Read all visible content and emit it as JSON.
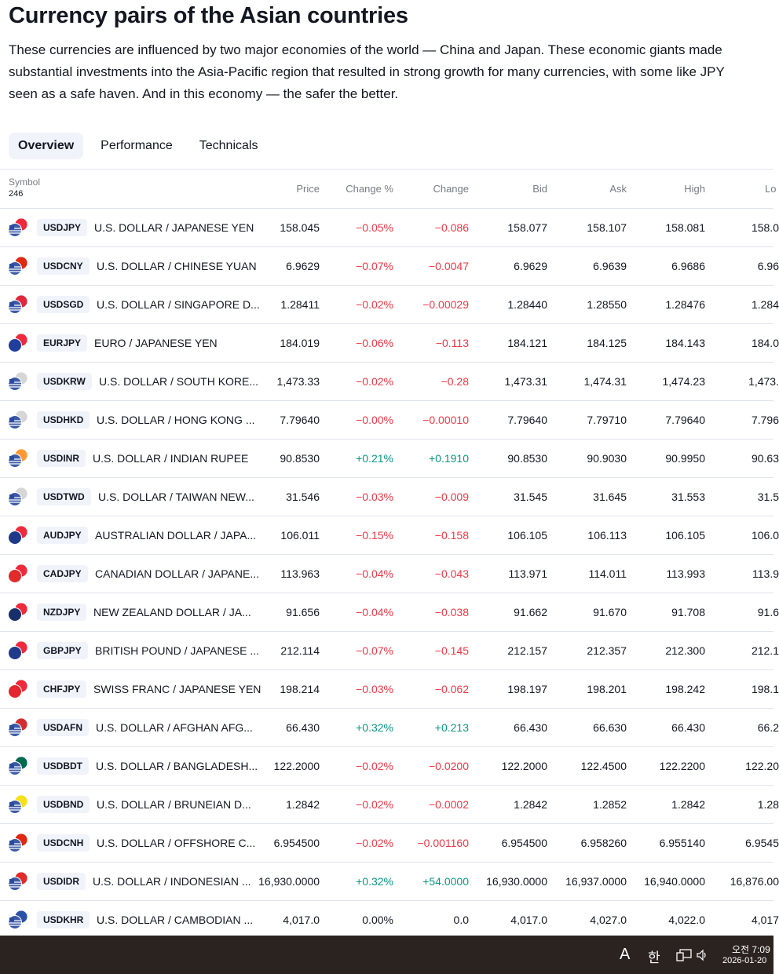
{
  "page": {
    "title": "Currency pairs of the Asian countries",
    "description": "These currencies are influenced by two major economies of the world — China and Japan. These economic giants made substantial investments into the Asia-Pacific region that resulted in strong growth for many currencies, with some like JPY seen as a safe haven. And in this economy — the safer the better."
  },
  "tabs": [
    {
      "label": "Overview",
      "active": true
    },
    {
      "label": "Performance",
      "active": false
    },
    {
      "label": "Technicals",
      "active": false
    }
  ],
  "table": {
    "columns": {
      "symbol": "Symbol",
      "count": "246",
      "price": "Price",
      "change_pct": "Change %",
      "change": "Change",
      "bid": "Bid",
      "ask": "Ask",
      "high": "High",
      "low": "Lo"
    },
    "colors": {
      "negative": "#f23645",
      "positive": "#089981",
      "neutral": "#131722"
    },
    "rows": [
      {
        "ticker": "USDJPY",
        "name": "U.S. DOLLAR / JAPANESE YEN",
        "flag": "us-jp-flag",
        "price": "158.045",
        "change_pct": "−0.05%",
        "change": "−0.086",
        "bid": "158.077",
        "ask": "158.107",
        "high": "158.081",
        "low": "158.0",
        "dir": "neg"
      },
      {
        "ticker": "USDCNY",
        "name": "U.S. DOLLAR / CHINESE YUAN",
        "flag": "us-cn-flag",
        "price": "6.9629",
        "change_pct": "−0.07%",
        "change": "−0.0047",
        "bid": "6.9629",
        "ask": "6.9639",
        "high": "6.9686",
        "low": "6.96",
        "dir": "neg"
      },
      {
        "ticker": "USDSGD",
        "name": "U.S. DOLLAR / SINGAPORE D...",
        "flag": "us-sg-flag",
        "price": "1.28411",
        "change_pct": "−0.02%",
        "change": "−0.00029",
        "bid": "1.28440",
        "ask": "1.28550",
        "high": "1.28476",
        "low": "1.284",
        "dir": "neg"
      },
      {
        "ticker": "EURJPY",
        "name": "EURO / JAPANESE YEN",
        "flag": "eu-jp-flag",
        "price": "184.019",
        "change_pct": "−0.06%",
        "change": "−0.113",
        "bid": "184.121",
        "ask": "184.125",
        "high": "184.143",
        "low": "184.0",
        "dir": "neg"
      },
      {
        "ticker": "USDKRW",
        "name": "U.S. DOLLAR / SOUTH KORE...",
        "flag": "us-kr-flag",
        "price": "1,473.33",
        "change_pct": "−0.02%",
        "change": "−0.28",
        "bid": "1,473.31",
        "ask": "1,474.31",
        "high": "1,474.23",
        "low": "1,473.",
        "dir": "neg"
      },
      {
        "ticker": "USDHKD",
        "name": "U.S. DOLLAR / HONG KONG ...",
        "flag": "us-hk-flag",
        "price": "7.79640",
        "change_pct": "−0.00%",
        "change": "−0.00010",
        "bid": "7.79640",
        "ask": "7.79710",
        "high": "7.79640",
        "low": "7.796",
        "dir": "neg"
      },
      {
        "ticker": "USDINR",
        "name": "U.S. DOLLAR / INDIAN RUPEE",
        "flag": "us-in-flag",
        "price": "90.8530",
        "change_pct": "+0.21%",
        "change": "+0.1910",
        "bid": "90.8530",
        "ask": "90.9030",
        "high": "90.9950",
        "low": "90.63",
        "dir": "pos"
      },
      {
        "ticker": "USDTWD",
        "name": "U.S. DOLLAR / TAIWAN NEW...",
        "flag": "us-tw-flag",
        "price": "31.546",
        "change_pct": "−0.03%",
        "change": "−0.009",
        "bid": "31.545",
        "ask": "31.645",
        "high": "31.553",
        "low": "31.5",
        "dir": "neg"
      },
      {
        "ticker": "AUDJPY",
        "name": "AUSTRALIAN DOLLAR / JAPA...",
        "flag": "au-jp-flag",
        "price": "106.011",
        "change_pct": "−0.15%",
        "change": "−0.158",
        "bid": "106.105",
        "ask": "106.113",
        "high": "106.105",
        "low": "106.0",
        "dir": "neg"
      },
      {
        "ticker": "CADJPY",
        "name": "CANADIAN DOLLAR / JAPANE...",
        "flag": "ca-jp-flag",
        "price": "113.963",
        "change_pct": "−0.04%",
        "change": "−0.043",
        "bid": "113.971",
        "ask": "114.011",
        "high": "113.993",
        "low": "113.9",
        "dir": "neg"
      },
      {
        "ticker": "NZDJPY",
        "name": "NEW ZEALAND DOLLAR / JA...",
        "flag": "nz-jp-flag",
        "price": "91.656",
        "change_pct": "−0.04%",
        "change": "−0.038",
        "bid": "91.662",
        "ask": "91.670",
        "high": "91.708",
        "low": "91.6",
        "dir": "neg"
      },
      {
        "ticker": "GBPJPY",
        "name": "BRITISH POUND / JAPANESE ...",
        "flag": "gb-jp-flag",
        "price": "212.114",
        "change_pct": "−0.07%",
        "change": "−0.145",
        "bid": "212.157",
        "ask": "212.357",
        "high": "212.300",
        "low": "212.1",
        "dir": "neg"
      },
      {
        "ticker": "CHFJPY",
        "name": "SWISS FRANC / JAPANESE YEN",
        "flag": "ch-jp-flag",
        "price": "198.214",
        "change_pct": "−0.03%",
        "change": "−0.062",
        "bid": "198.197",
        "ask": "198.201",
        "high": "198.242",
        "low": "198.1",
        "dir": "neg"
      },
      {
        "ticker": "USDAFN",
        "name": "U.S. DOLLAR / AFGHAN AFG...",
        "flag": "us-af-flag",
        "price": "66.430",
        "change_pct": "+0.32%",
        "change": "+0.213",
        "bid": "66.430",
        "ask": "66.630",
        "high": "66.430",
        "low": "66.2",
        "dir": "pos"
      },
      {
        "ticker": "USDBDT",
        "name": "U.S. DOLLAR / BANGLADESH...",
        "flag": "us-bd-flag",
        "price": "122.2000",
        "change_pct": "−0.02%",
        "change": "−0.0200",
        "bid": "122.2000",
        "ask": "122.4500",
        "high": "122.2200",
        "low": "122.20",
        "dir": "neg"
      },
      {
        "ticker": "USDBND",
        "name": "U.S. DOLLAR / BRUNEIAN D...",
        "flag": "us-bn-flag",
        "price": "1.2842",
        "change_pct": "−0.02%",
        "change": "−0.0002",
        "bid": "1.2842",
        "ask": "1.2852",
        "high": "1.2842",
        "low": "1.28",
        "dir": "neg"
      },
      {
        "ticker": "USDCNH",
        "name": "U.S. DOLLAR / OFFSHORE C...",
        "flag": "us-cn-flag",
        "price": "6.954500",
        "change_pct": "−0.02%",
        "change": "−0.001160",
        "bid": "6.954500",
        "ask": "6.958260",
        "high": "6.955140",
        "low": "6.9545",
        "dir": "neg"
      },
      {
        "ticker": "USDIDR",
        "name": "U.S. DOLLAR / INDONESIAN ...",
        "flag": "us-id-flag",
        "price": "16,930.0000",
        "change_pct": "+0.32%",
        "change": "+54.0000",
        "bid": "16,930.0000",
        "ask": "16,937.0000",
        "high": "16,940.0000",
        "low": "16,876.00",
        "dir": "pos"
      },
      {
        "ticker": "USDKHR",
        "name": "U.S. DOLLAR / CAMBODIAN ...",
        "flag": "us-kh-flag",
        "price": "4,017.0",
        "change_pct": "0.00%",
        "change": "0.0",
        "bid": "4,017.0",
        "ask": "4,027.0",
        "high": "4,022.0",
        "low": "4,017",
        "dir": "neu"
      }
    ]
  },
  "taskbar": {
    "ime": "A",
    "lang": "한",
    "time": "오전 7:09",
    "date": "2026-01-20"
  }
}
